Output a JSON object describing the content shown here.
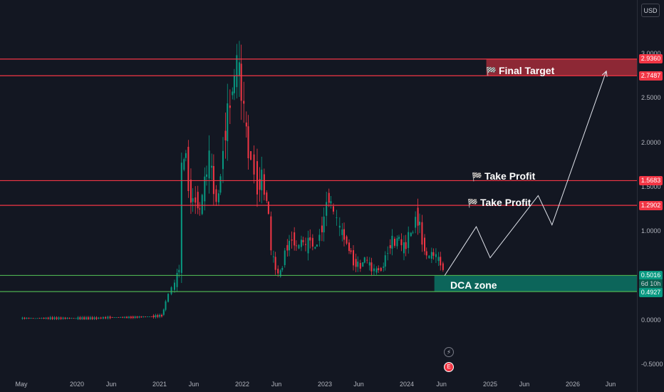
{
  "currency": "USD",
  "chart_data": {
    "type": "candlestick",
    "ylim": [
      -0.5,
      3.0
    ],
    "y_ticks": [
      "3.0000",
      "2.5000",
      "2.0000",
      "1.5000",
      "1.0000",
      "0.0000",
      "-0.5000"
    ],
    "x_ticks": [
      "May",
      "2020",
      "Jun",
      "2021",
      "Jun",
      "2022",
      "Jun",
      "2023",
      "Jun",
      "2024",
      "Jun",
      "2025",
      "Jun",
      "2026",
      "Jun"
    ],
    "x_tick_dates": [
      "2019-05-01",
      "2020-01-01",
      "2020-06-01",
      "2021-01-01",
      "2021-06-01",
      "2022-01-01",
      "2022-06-01",
      "2023-01-01",
      "2023-06-01",
      "2024-01-01",
      "2024-06-01",
      "2025-01-01",
      "2025-06-01",
      "2026-01-01",
      "2026-06-01"
    ],
    "close_series": [
      [
        "2019-05-01",
        0.02
      ],
      [
        "2019-09-01",
        0.02
      ],
      [
        "2020-01-01",
        0.02
      ],
      [
        "2020-04-01",
        0.02
      ],
      [
        "2020-06-01",
        0.03
      ],
      [
        "2020-09-01",
        0.03
      ],
      [
        "2020-12-01",
        0.04
      ],
      [
        "2021-01-15",
        0.05
      ],
      [
        "2021-02-01",
        0.2
      ],
      [
        "2021-02-15",
        0.3
      ],
      [
        "2021-03-01",
        0.36
      ],
      [
        "2021-03-15",
        0.4
      ],
      [
        "2021-04-01",
        0.6
      ],
      [
        "2021-04-15",
        1.7
      ],
      [
        "2021-05-01",
        1.9
      ],
      [
        "2021-05-15",
        1.5
      ],
      [
        "2021-06-01",
        1.3
      ],
      [
        "2021-06-15",
        1.4
      ],
      [
        "2021-07-01",
        1.2
      ],
      [
        "2021-07-15",
        1.4
      ],
      [
        "2021-08-01",
        1.7
      ],
      [
        "2021-08-15",
        1.8
      ],
      [
        "2021-09-01",
        1.5
      ],
      [
        "2021-09-15",
        1.3
      ],
      [
        "2021-10-01",
        1.6
      ],
      [
        "2021-10-15",
        2.0
      ],
      [
        "2021-11-01",
        2.3
      ],
      [
        "2021-11-15",
        2.5
      ],
      [
        "2021-12-01",
        2.7
      ],
      [
        "2021-12-15",
        2.9
      ],
      [
        "2022-01-01",
        2.6
      ],
      [
        "2022-01-15",
        2.3
      ],
      [
        "2022-02-01",
        1.9
      ],
      [
        "2022-02-15",
        1.8
      ],
      [
        "2022-03-01",
        1.7
      ],
      [
        "2022-03-15",
        1.5
      ],
      [
        "2022-04-01",
        1.6
      ],
      [
        "2022-04-15",
        1.45
      ],
      [
        "2022-05-01",
        1.2
      ],
      [
        "2022-05-15",
        0.75
      ],
      [
        "2022-06-01",
        0.6
      ],
      [
        "2022-06-15",
        0.5
      ],
      [
        "2022-07-01",
        0.6
      ],
      [
        "2022-07-15",
        0.8
      ],
      [
        "2022-08-01",
        0.85
      ],
      [
        "2022-08-15",
        0.95
      ],
      [
        "2022-09-01",
        0.8
      ],
      [
        "2022-09-15",
        0.85
      ],
      [
        "2022-10-01",
        0.9
      ],
      [
        "2022-10-15",
        0.8
      ],
      [
        "2022-11-01",
        0.95
      ],
      [
        "2022-11-15",
        0.8
      ],
      [
        "2022-12-01",
        0.85
      ],
      [
        "2022-12-15",
        1.0
      ],
      [
        "2023-01-01",
        1.1
      ],
      [
        "2023-01-15",
        1.4
      ],
      [
        "2023-02-01",
        1.3
      ],
      [
        "2023-02-15",
        1.2
      ],
      [
        "2023-03-01",
        1.1
      ],
      [
        "2023-03-15",
        1.0
      ],
      [
        "2023-04-01",
        0.95
      ],
      [
        "2023-04-15",
        0.85
      ],
      [
        "2023-05-01",
        0.75
      ],
      [
        "2023-05-15",
        0.65
      ],
      [
        "2023-06-01",
        0.62
      ],
      [
        "2023-06-15",
        0.6
      ],
      [
        "2023-07-01",
        0.7
      ],
      [
        "2023-07-15",
        0.65
      ],
      [
        "2023-08-01",
        0.58
      ],
      [
        "2023-08-15",
        0.55
      ],
      [
        "2023-09-01",
        0.58
      ],
      [
        "2023-09-15",
        0.56
      ],
      [
        "2023-10-01",
        0.7
      ],
      [
        "2023-10-15",
        0.8
      ],
      [
        "2023-11-01",
        0.9
      ],
      [
        "2023-11-15",
        0.85
      ],
      [
        "2023-12-01",
        0.95
      ],
      [
        "2023-12-15",
        0.8
      ],
      [
        "2024-01-01",
        0.85
      ],
      [
        "2024-01-15",
        0.95
      ],
      [
        "2024-02-01",
        1.0
      ],
      [
        "2024-02-15",
        1.2
      ],
      [
        "2024-03-01",
        1.05
      ],
      [
        "2024-03-15",
        0.9
      ],
      [
        "2024-04-01",
        0.7
      ],
      [
        "2024-04-15",
        0.72
      ],
      [
        "2024-05-01",
        0.75
      ],
      [
        "2024-05-15",
        0.7
      ],
      [
        "2024-06-01",
        0.65
      ],
      [
        "2024-06-15",
        0.55
      ]
    ],
    "levels": [
      {
        "value": 2.936,
        "label": "2.9360",
        "color": "#f23645"
      },
      {
        "value": 2.7487,
        "label": "2.7487",
        "color": "#f23645"
      },
      {
        "value": 1.5683,
        "label": "1.5683",
        "color": "#f23645"
      },
      {
        "value": 1.2902,
        "label": "1.2902",
        "color": "#f23645"
      },
      {
        "value": 0.5016,
        "label": "0.5016",
        "color": "#4caf50"
      },
      {
        "value": 0.3197,
        "label": "0.3197",
        "color": "#4caf50"
      }
    ],
    "current_price": {
      "value": 0.5016,
      "label": "0.5016",
      "countdown": "6d 10h",
      "secondary_label": "0.4927"
    },
    "zones": [
      {
        "name": "Final Target",
        "from": 2.7487,
        "to": 2.936,
        "start": "2024-12-15",
        "color": "#f23645"
      },
      {
        "name": "DCA zone",
        "from": 0.3197,
        "to": 0.5016,
        "start": "2024-05-01",
        "color": "#089981"
      }
    ],
    "labels": {
      "final_target": "Final Target",
      "take_profit_1": "Take Profit",
      "take_profit_2": "Take Profit",
      "dca_zone": "DCA zone"
    },
    "projection_path": [
      [
        "2024-06-15",
        0.5
      ],
      [
        "2024-11-01",
        1.05
      ],
      [
        "2025-01-01",
        0.7
      ],
      [
        "2025-08-01",
        1.4
      ],
      [
        "2025-10-01",
        1.07
      ],
      [
        "2026-05-15",
        2.8
      ]
    ]
  }
}
